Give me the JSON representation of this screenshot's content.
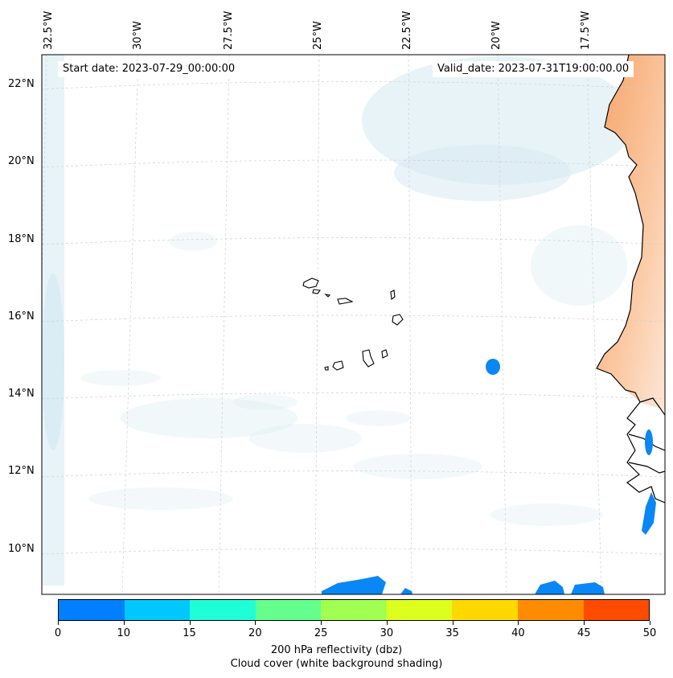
{
  "map": {
    "start_date_text": "Start date: 2023-07-29_00:00:00",
    "valid_date_text": "Valid_date: 2023-07-31T19:00:00.00",
    "longitude_labels": [
      "32.5°W",
      "30°W",
      "27.5°W",
      "25°W",
      "22.5°W",
      "20°W",
      "17.5°W"
    ],
    "latitude_labels": [
      "22°N",
      "20°N",
      "18°N",
      "16°N",
      "14°N",
      "12°N",
      "10°N"
    ]
  },
  "colorbar": {
    "title": "200 hPa reflectivity (dbz)",
    "subtitle": "Cloud cover (white background shading)",
    "ticks": [
      "0",
      "10",
      "15",
      "20",
      "25",
      "30",
      "35",
      "40",
      "45",
      "50"
    ],
    "colors": [
      "#0080ff",
      "#00c8ff",
      "#1effd8",
      "#64ff8c",
      "#a0ff50",
      "#dcff1e",
      "#ffd800",
      "#ff8c00",
      "#ff4b00"
    ]
  },
  "colors": {
    "land_shading": "#f6a36a",
    "cloud_shading": "#d6eaf2",
    "coastline": "#000000",
    "reflectivity_low": "#0a87f5"
  }
}
